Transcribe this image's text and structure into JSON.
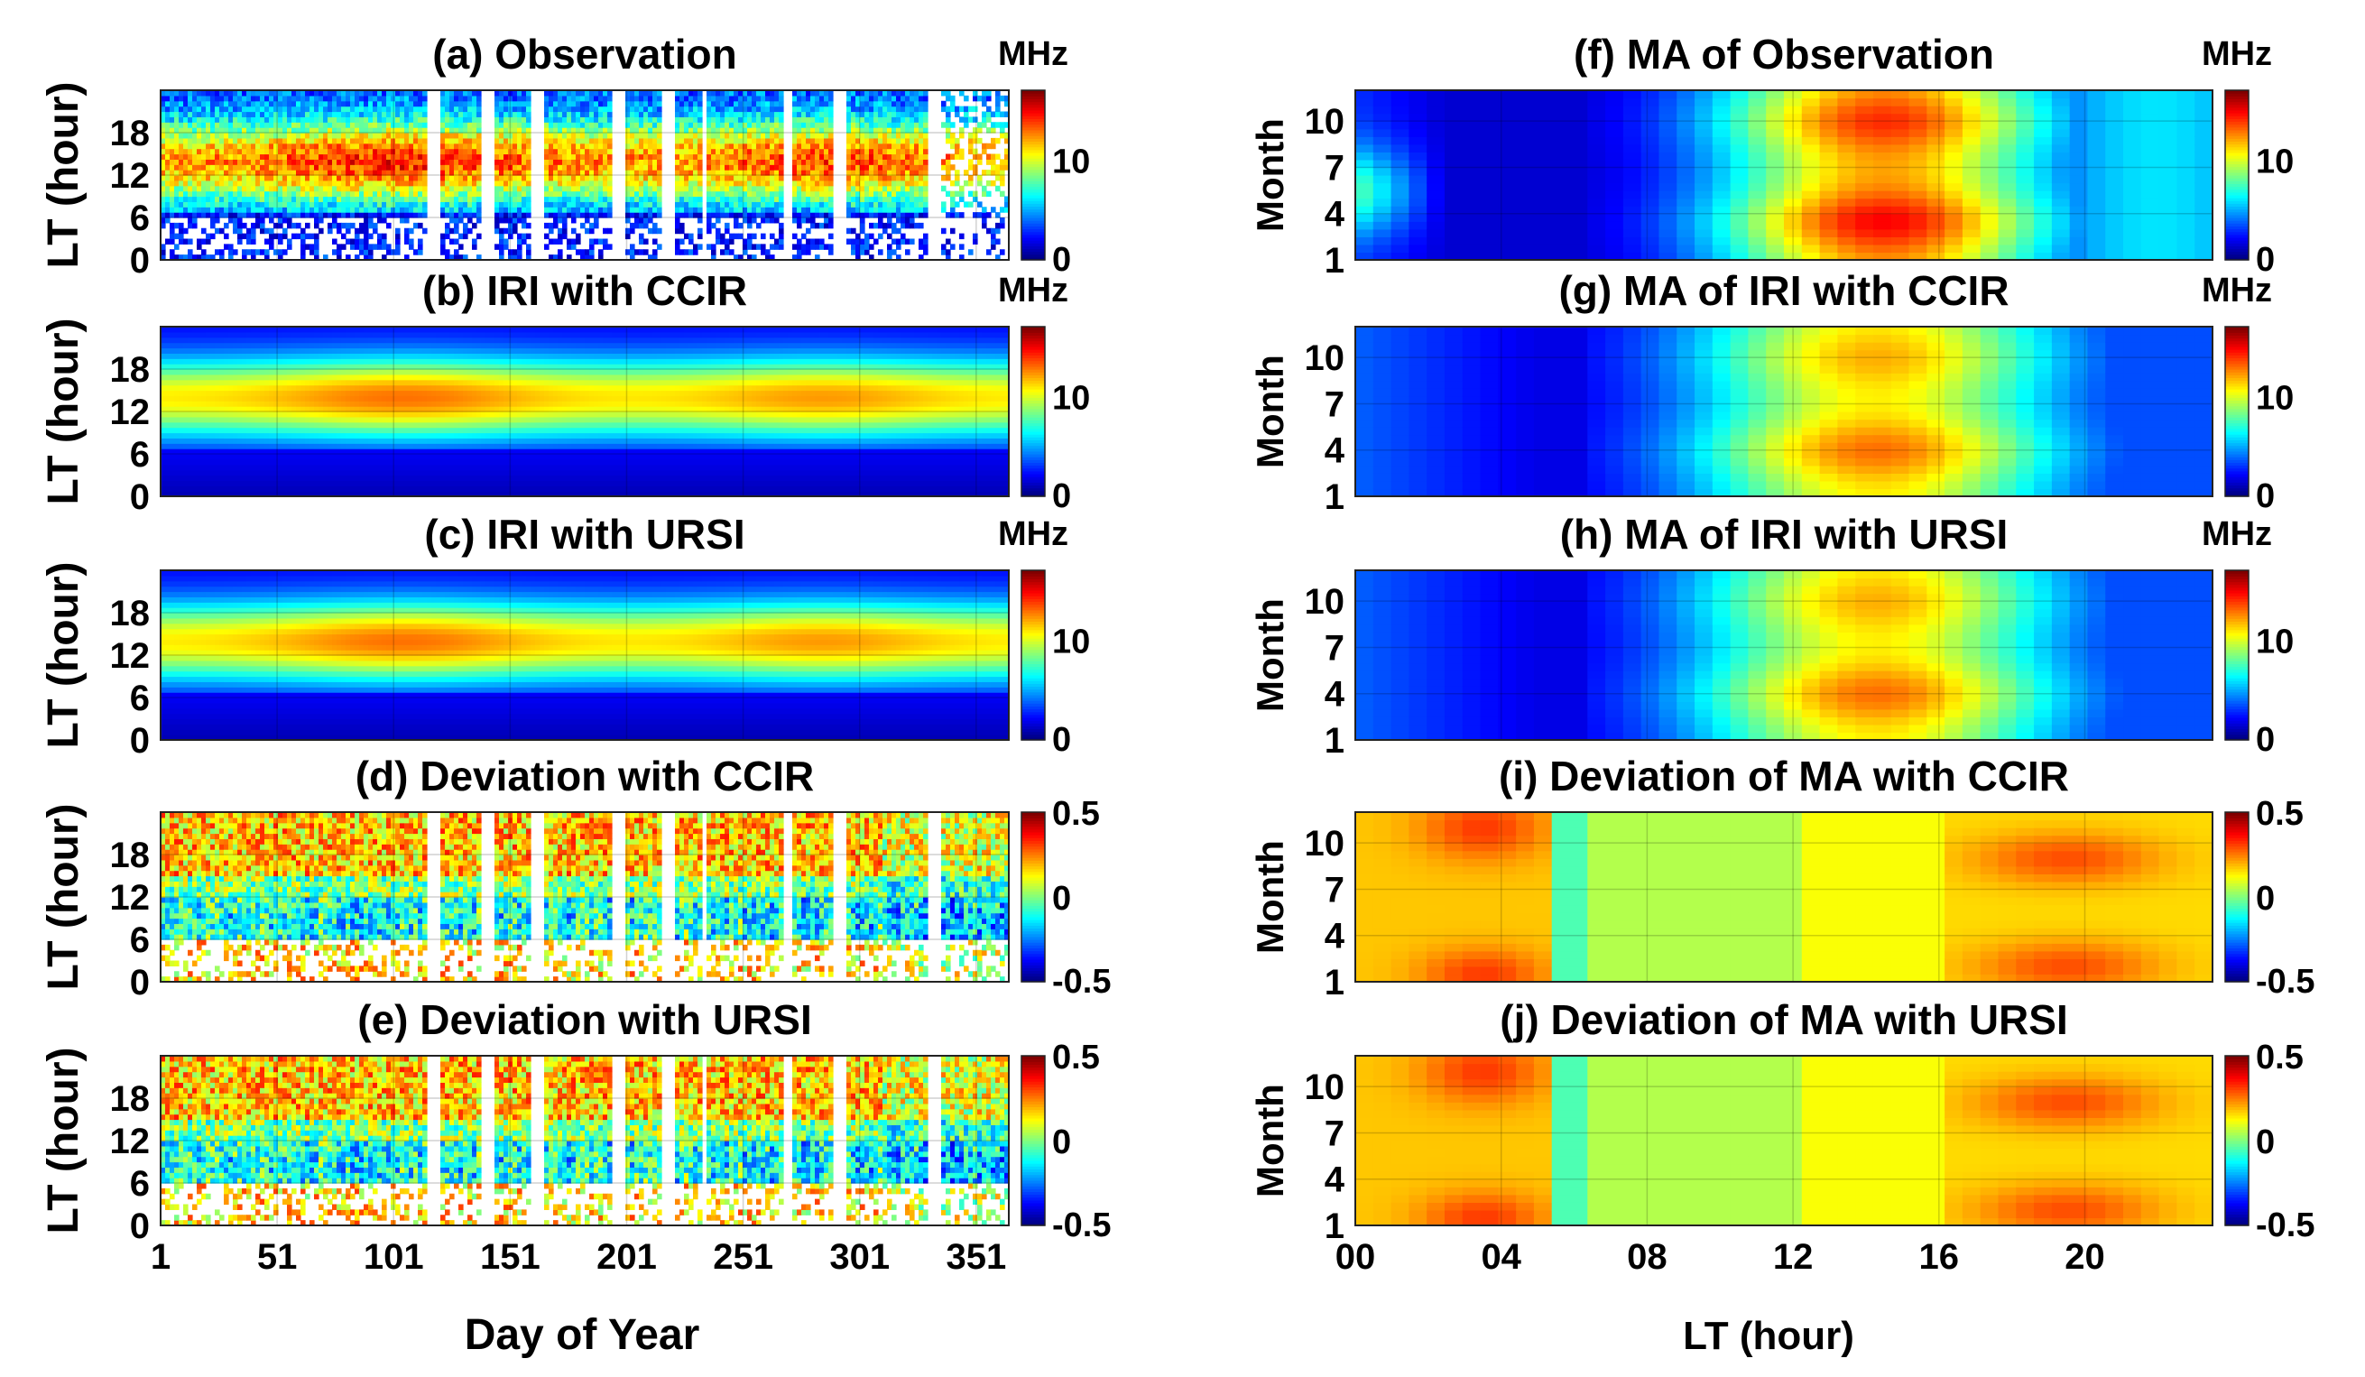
{
  "figure": {
    "left_x_label": "Day of Year",
    "right_x_label": "LT (hour)"
  },
  "chart_data": [
    {
      "id": "a",
      "type": "heatmap",
      "title": "(a) Observation",
      "xlabel": "Day of Year",
      "ylabel": "LT (hour)",
      "xlim": [
        1,
        365
      ],
      "ylim": [
        0,
        24
      ],
      "xticks": [
        1,
        51,
        101,
        151,
        201,
        251,
        301,
        351
      ],
      "yticks": [
        0,
        6,
        12,
        18
      ],
      "ytick_labels": [
        "0",
        "6",
        "12",
        "18"
      ],
      "colorbar": {
        "unit": "MHz",
        "range": [
          0,
          17
        ],
        "ticks": [
          0,
          10
        ],
        "tick_labels": [
          "0",
          "10"
        ]
      },
      "field": "observation",
      "gaps": true,
      "description_peaks": [
        {
          "day": 101,
          "lt": 14,
          "value": 15
        },
        {
          "day": 280,
          "lt": 14,
          "value": 14
        }
      ]
    },
    {
      "id": "b",
      "type": "heatmap",
      "title": "(b) IRI with CCIR",
      "xlabel": "Day of Year",
      "ylabel": "LT (hour)",
      "xlim": [
        1,
        365
      ],
      "ylim": [
        0,
        24
      ],
      "xticks": [
        1,
        51,
        101,
        151,
        201,
        251,
        301,
        351
      ],
      "yticks": [
        0,
        6,
        12,
        18
      ],
      "ytick_labels": [
        "0",
        "6",
        "12",
        "18"
      ],
      "colorbar": {
        "unit": "MHz",
        "range": [
          0,
          17
        ],
        "ticks": [
          0,
          10
        ],
        "tick_labels": [
          "0",
          "10"
        ]
      },
      "field": "iri",
      "gaps": false
    },
    {
      "id": "c",
      "type": "heatmap",
      "title": "(c) IRI with URSI",
      "xlabel": "Day of Year",
      "ylabel": "LT (hour)",
      "xlim": [
        1,
        365
      ],
      "ylim": [
        0,
        24
      ],
      "xticks": [
        1,
        51,
        101,
        151,
        201,
        251,
        301,
        351
      ],
      "yticks": [
        0,
        6,
        12,
        18
      ],
      "ytick_labels": [
        "0",
        "6",
        "12",
        "18"
      ],
      "colorbar": {
        "unit": "MHz",
        "range": [
          0,
          17
        ],
        "ticks": [
          0,
          10
        ],
        "tick_labels": [
          "0",
          "10"
        ]
      },
      "field": "iri",
      "gaps": false
    },
    {
      "id": "d",
      "type": "heatmap",
      "title": "(d) Deviation with CCIR",
      "xlabel": "Day of Year",
      "ylabel": "LT (hour)",
      "xlim": [
        1,
        365
      ],
      "ylim": [
        0,
        24
      ],
      "xticks": [
        1,
        51,
        101,
        151,
        201,
        251,
        301,
        351
      ],
      "yticks": [
        0,
        6,
        12,
        18
      ],
      "ytick_labels": [
        "0",
        "6",
        "12",
        "18"
      ],
      "colorbar": {
        "unit": "",
        "range": [
          -0.5,
          0.5
        ],
        "ticks": [
          -0.5,
          0,
          0.5
        ],
        "tick_labels": [
          "-0.5",
          "0",
          "0.5"
        ]
      },
      "field": "deviation",
      "gaps": true
    },
    {
      "id": "e",
      "type": "heatmap",
      "title": "(e) Deviation with URSI",
      "xlabel": "Day of Year",
      "ylabel": "LT (hour)",
      "xlim": [
        1,
        365
      ],
      "ylim": [
        0,
        24
      ],
      "xticks": [
        1,
        51,
        101,
        151,
        201,
        251,
        301,
        351
      ],
      "yticks": [
        0,
        6,
        12,
        18
      ],
      "ytick_labels": [
        "0",
        "6",
        "12",
        "18"
      ],
      "colorbar": {
        "unit": "",
        "range": [
          -0.5,
          0.5
        ],
        "ticks": [
          -0.5,
          0,
          0.5
        ],
        "tick_labels": [
          "-0.5",
          "0",
          "0.5"
        ]
      },
      "field": "deviation",
      "gaps": true
    },
    {
      "id": "f",
      "type": "heatmap",
      "title": "(f) MA of Observation",
      "xlabel": "LT (hour)",
      "ylabel": "Month",
      "xlim": [
        0,
        23.5
      ],
      "ylim": [
        1,
        12
      ],
      "xticks": [
        0,
        4,
        8,
        12,
        16,
        20
      ],
      "xtick_labels": [
        "00",
        "04",
        "08",
        "12",
        "16",
        "20"
      ],
      "yticks": [
        1,
        4,
        7,
        10
      ],
      "ytick_labels": [
        "1",
        "4",
        "7",
        "10"
      ],
      "colorbar": {
        "unit": "MHz",
        "range": [
          0,
          17
        ],
        "ticks": [
          0,
          10
        ],
        "tick_labels": [
          "0",
          "10"
        ]
      },
      "field": "ma_obs"
    },
    {
      "id": "g",
      "type": "heatmap",
      "title": "(g) MA of IRI with CCIR",
      "xlabel": "LT (hour)",
      "ylabel": "Month",
      "xlim": [
        0,
        23.5
      ],
      "ylim": [
        1,
        12
      ],
      "xticks": [
        0,
        4,
        8,
        12,
        16,
        20
      ],
      "xtick_labels": [
        "00",
        "04",
        "08",
        "12",
        "16",
        "20"
      ],
      "yticks": [
        1,
        4,
        7,
        10
      ],
      "ytick_labels": [
        "1",
        "4",
        "7",
        "10"
      ],
      "colorbar": {
        "unit": "MHz",
        "range": [
          0,
          17
        ],
        "ticks": [
          0,
          10
        ],
        "tick_labels": [
          "0",
          "10"
        ]
      },
      "field": "ma_iri"
    },
    {
      "id": "h",
      "type": "heatmap",
      "title": "(h) MA of IRI with URSI",
      "xlabel": "LT (hour)",
      "ylabel": "Month",
      "xlim": [
        0,
        23.5
      ],
      "ylim": [
        1,
        12
      ],
      "xticks": [
        0,
        4,
        8,
        12,
        16,
        20
      ],
      "xtick_labels": [
        "00",
        "04",
        "08",
        "12",
        "16",
        "20"
      ],
      "yticks": [
        1,
        4,
        7,
        10
      ],
      "ytick_labels": [
        "1",
        "4",
        "7",
        "10"
      ],
      "colorbar": {
        "unit": "MHz",
        "range": [
          0,
          17
        ],
        "ticks": [
          0,
          10
        ],
        "tick_labels": [
          "0",
          "10"
        ]
      },
      "field": "ma_iri"
    },
    {
      "id": "i",
      "type": "heatmap",
      "title": "(i) Deviation of MA with CCIR",
      "xlabel": "LT (hour)",
      "ylabel": "Month",
      "xlim": [
        0,
        23.5
      ],
      "ylim": [
        1,
        12
      ],
      "xticks": [
        0,
        4,
        8,
        12,
        16,
        20
      ],
      "xtick_labels": [
        "00",
        "04",
        "08",
        "12",
        "16",
        "20"
      ],
      "yticks": [
        1,
        4,
        7,
        10
      ],
      "ytick_labels": [
        "1",
        "4",
        "7",
        "10"
      ],
      "colorbar": {
        "unit": "",
        "range": [
          -0.5,
          0.5
        ],
        "ticks": [
          -0.5,
          0,
          0.5
        ],
        "tick_labels": [
          "-0.5",
          "0",
          "0.5"
        ]
      },
      "field": "ma_dev"
    },
    {
      "id": "j",
      "type": "heatmap",
      "title": "(j) Deviation of MA with URSI",
      "xlabel": "LT (hour)",
      "ylabel": "Month",
      "xlim": [
        0,
        23.5
      ],
      "ylim": [
        1,
        12
      ],
      "xticks": [
        0,
        4,
        8,
        12,
        16,
        20
      ],
      "xtick_labels": [
        "00",
        "04",
        "08",
        "12",
        "16",
        "20"
      ],
      "yticks": [
        1,
        4,
        7,
        10
      ],
      "ytick_labels": [
        "1",
        "4",
        "7",
        "10"
      ],
      "colorbar": {
        "unit": "",
        "range": [
          -0.5,
          0.5
        ],
        "ticks": [
          -0.5,
          0,
          0.5
        ],
        "tick_labels": [
          "-0.5",
          "0",
          "0.5"
        ]
      },
      "field": "ma_dev"
    }
  ]
}
